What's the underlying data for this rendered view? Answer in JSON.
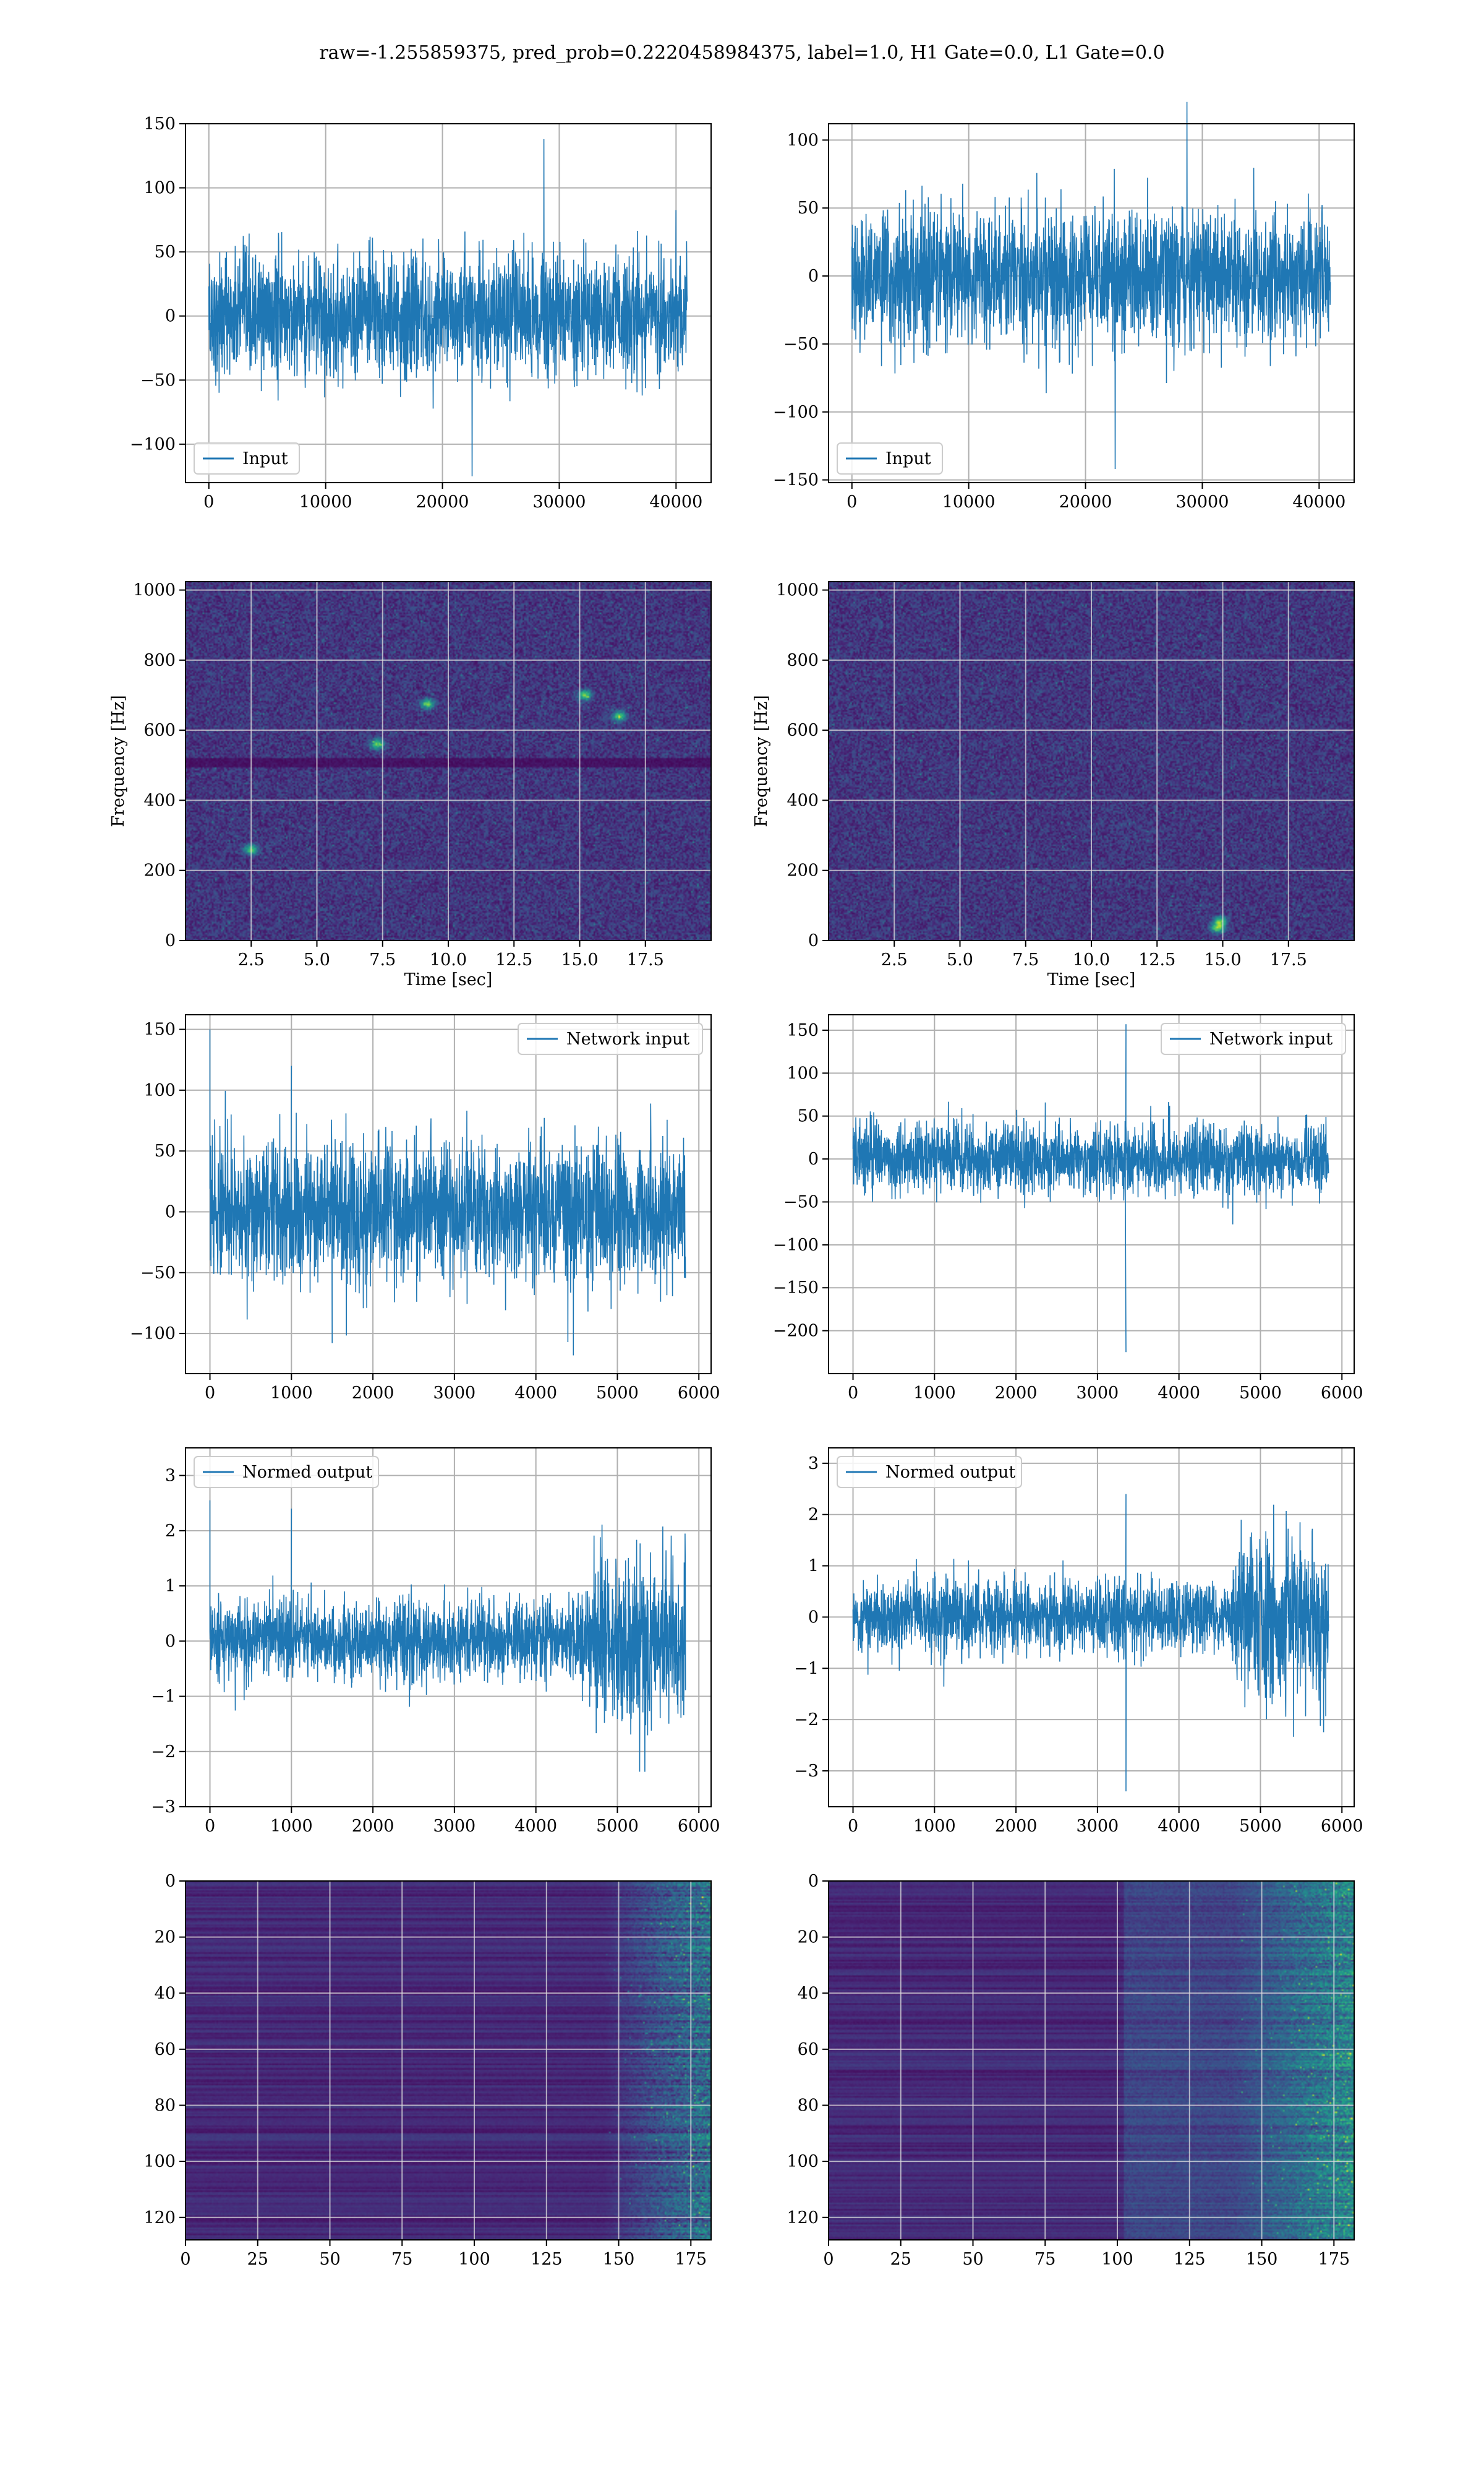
{
  "figure": {
    "title": "raw=-1.255859375, pred_prob=0.2220458984375, label=1.0, H1 Gate=0.0, L1 Gate=0.0"
  },
  "colors": {
    "line": "#1f77b4",
    "grid": "#b0b0b0",
    "viridis_low": "#440154",
    "viridis_high": "#fde725"
  },
  "chart_data": [
    {
      "id": "row1-left",
      "type": "line",
      "title": "",
      "xlabel": "",
      "ylabel": "",
      "xlim": [
        -2000,
        43000
      ],
      "ylim": [
        -130,
        150
      ],
      "xticks": [
        0,
        10000,
        20000,
        30000,
        40000
      ],
      "yticks": [
        -100,
        -50,
        0,
        50,
        100,
        150
      ],
      "series": [
        {
          "name": "Input",
          "n_points": 40960,
          "x_range": [
            0,
            40960
          ],
          "sigma": 24,
          "min": -125,
          "max": 138
        }
      ],
      "legend": {
        "entries": [
          "Input"
        ],
        "position": "lower-left"
      },
      "grid": true
    },
    {
      "id": "row1-right",
      "type": "line",
      "title": "",
      "xlabel": "",
      "ylabel": "",
      "xlim": [
        -2000,
        43000
      ],
      "ylim": [
        -152,
        112
      ],
      "xticks": [
        0,
        10000,
        20000,
        30000,
        40000
      ],
      "yticks": [
        -150,
        -100,
        -50,
        0,
        50,
        100
      ],
      "series": [
        {
          "name": "Input",
          "n_points": 40960,
          "x_range": [
            0,
            40960
          ],
          "sigma": 24,
          "min": -142,
          "max": 128
        }
      ],
      "legend": {
        "entries": [
          "Input"
        ],
        "position": "lower-left"
      },
      "grid": true
    },
    {
      "id": "row2-left",
      "type": "heatmap",
      "title": "",
      "xlabel": "Time [sec]",
      "ylabel": "Frequency [Hz]",
      "xlim": [
        0,
        20
      ],
      "ylim": [
        0,
        1024
      ],
      "xticks": [
        2.5,
        5.0,
        7.5,
        10.0,
        12.5,
        15.0,
        17.5
      ],
      "yticks": [
        0,
        200,
        400,
        600,
        800,
        1000
      ],
      "colormap": "viridis",
      "features": {
        "dim_band_hz": [
          495,
          520
        ],
        "hot_spots": [
          [
            2.5,
            260
          ],
          [
            9.2,
            675
          ],
          [
            7.3,
            560
          ],
          [
            15.2,
            700
          ],
          [
            16.5,
            640
          ]
        ]
      },
      "grid": true
    },
    {
      "id": "row2-right",
      "type": "heatmap",
      "title": "",
      "xlabel": "Time [sec]",
      "ylabel": "Frequency [Hz]",
      "xlim": [
        0,
        20
      ],
      "ylim": [
        0,
        1024
      ],
      "xticks": [
        2.5,
        5.0,
        7.5,
        10.0,
        12.5,
        15.0,
        17.5
      ],
      "yticks": [
        0,
        200,
        400,
        600,
        800,
        1000
      ],
      "colormap": "viridis",
      "features": {
        "hot_spots": [
          [
            14.8,
            35
          ],
          [
            14.9,
            55
          ]
        ]
      },
      "grid": true
    },
    {
      "id": "row3-left",
      "type": "line",
      "title": "",
      "xlabel": "",
      "ylabel": "",
      "xlim": [
        -300,
        6150
      ],
      "ylim": [
        -133,
        162
      ],
      "xticks": [
        0,
        1000,
        2000,
        3000,
        4000,
        5000,
        6000
      ],
      "yticks": [
        -100,
        -50,
        0,
        50,
        100,
        150
      ],
      "series": [
        {
          "name": "Network input",
          "n_points": 5836,
          "x_range": [
            0,
            5836
          ],
          "sigma": 28,
          "spikes": [
            [
              0,
              150
            ],
            [
              1000,
              120
            ],
            [
              1500,
              -108
            ],
            [
              4460,
              -118
            ]
          ]
        }
      ],
      "legend": {
        "entries": [
          "Network input"
        ],
        "position": "upper-right"
      },
      "grid": true
    },
    {
      "id": "row3-right",
      "type": "line",
      "title": "",
      "xlabel": "",
      "ylabel": "",
      "xlim": [
        -300,
        6150
      ],
      "ylim": [
        -250,
        168
      ],
      "xticks": [
        0,
        1000,
        2000,
        3000,
        4000,
        5000,
        6000
      ],
      "yticks": [
        -200,
        -150,
        -100,
        -50,
        0,
        50,
        100,
        150
      ],
      "series": [
        {
          "name": "Network input",
          "n_points": 5836,
          "x_range": [
            0,
            5836
          ],
          "sigma": 20,
          "spikes": [
            [
              3350,
              157
            ],
            [
              3350,
              -225
            ]
          ]
        }
      ],
      "legend": {
        "entries": [
          "Network input"
        ],
        "position": "upper-right"
      },
      "grid": true
    },
    {
      "id": "row4-left",
      "type": "line",
      "title": "",
      "xlabel": "",
      "ylabel": "",
      "xlim": [
        -300,
        6150
      ],
      "ylim": [
        -3.0,
        3.5
      ],
      "xticks": [
        0,
        1000,
        2000,
        3000,
        4000,
        5000,
        6000
      ],
      "yticks": [
        -3,
        -2,
        -1,
        0,
        1,
        2,
        3
      ],
      "series": [
        {
          "name": "Normed output",
          "n_points": 5836,
          "x_range": [
            0,
            5836
          ],
          "sigma": 0.35,
          "loud_segment": {
            "x_range": [
              4650,
              5836
            ],
            "sigma": 0.75
          },
          "spikes": [
            [
              0,
              2.55
            ],
            [
              1000,
              2.4
            ]
          ]
        }
      ],
      "legend": {
        "entries": [
          "Normed output"
        ],
        "position": "upper-left"
      },
      "grid": true
    },
    {
      "id": "row4-right",
      "type": "line",
      "title": "",
      "xlabel": "",
      "ylabel": "",
      "xlim": [
        -300,
        6150
      ],
      "ylim": [
        -3.7,
        3.3
      ],
      "xticks": [
        0,
        1000,
        2000,
        3000,
        4000,
        5000,
        6000
      ],
      "yticks": [
        -3,
        -2,
        -1,
        0,
        1,
        2,
        3
      ],
      "series": [
        {
          "name": "Normed output",
          "n_points": 5836,
          "x_range": [
            0,
            5836
          ],
          "sigma": 0.35,
          "loud_segment": {
            "x_range": [
              4650,
              5836
            ],
            "sigma": 0.8
          },
          "spikes": [
            [
              3350,
              2.4
            ],
            [
              3350,
              -3.4
            ]
          ]
        }
      ],
      "legend": {
        "entries": [
          "Normed output"
        ],
        "position": "upper-left"
      },
      "grid": true
    },
    {
      "id": "row5-left",
      "type": "heatmap",
      "title": "",
      "xlabel": "",
      "ylabel": "",
      "xlim": [
        0,
        182
      ],
      "ylim": [
        128,
        0
      ],
      "xticks": [
        0,
        25,
        50,
        75,
        100,
        125,
        150,
        175
      ],
      "yticks": [
        0,
        20,
        40,
        60,
        80,
        100,
        120
      ],
      "colormap": "viridis",
      "features": {
        "active_from_col": 145
      },
      "grid": true
    },
    {
      "id": "row5-right",
      "type": "heatmap",
      "title": "",
      "xlabel": "",
      "ylabel": "",
      "xlim": [
        0,
        182
      ],
      "ylim": [
        128,
        0
      ],
      "xticks": [
        0,
        25,
        50,
        75,
        100,
        125,
        150,
        175
      ],
      "yticks": [
        0,
        20,
        40,
        60,
        80,
        100,
        120
      ],
      "colormap": "viridis",
      "features": {
        "transition_col": 102,
        "active_from_col": 140
      },
      "grid": true
    }
  ]
}
